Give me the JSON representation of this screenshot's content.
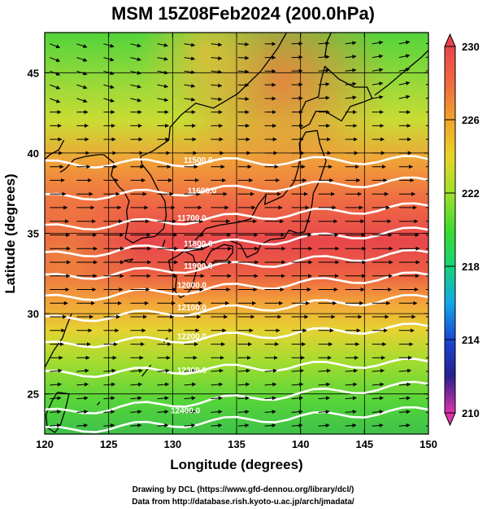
{
  "title": "MSM 15Z08Feb2024 (200.0hPa)",
  "map": {
    "xlabel": "Longitude (degrees)",
    "ylabel": "Latitude  (degrees)",
    "lon_range": [
      120,
      150
    ],
    "lat_range": [
      22.5,
      47.5
    ],
    "lon_ticks": [
      "120",
      "125",
      "130",
      "135",
      "140",
      "145",
      "150"
    ],
    "lat_ticks": [
      "25",
      "30",
      "35",
      "40",
      "45"
    ],
    "grid_lon": [
      125,
      130,
      135,
      140,
      145
    ],
    "grid_lat": [
      25,
      30,
      35,
      40,
      45
    ]
  },
  "colorbar": {
    "min": 210,
    "max": 230,
    "tick_labels": [
      "230",
      "226",
      "222",
      "218",
      "214",
      "210"
    ],
    "colors": [
      "#dd33aa",
      "#2a1f8f",
      "#1947d4",
      "#14a8e6",
      "#18d27a",
      "#3ddc2e",
      "#9fe02c",
      "#e8d428",
      "#f2a22d",
      "#ef6a3e",
      "#e8464b"
    ]
  },
  "contours": {
    "labels": [
      {
        "text": "11500.0",
        "lon": 132.0,
        "lat": 39.6
      },
      {
        "text": "11600.0",
        "lon": 132.3,
        "lat": 37.7
      },
      {
        "text": "11700.0",
        "lon": 131.5,
        "lat": 36.0
      },
      {
        "text": "11800.0",
        "lon": 132.0,
        "lat": 34.4
      },
      {
        "text": "11900.0",
        "lon": 132.0,
        "lat": 33.0
      },
      {
        "text": "12000.0",
        "lon": 131.5,
        "lat": 31.8
      },
      {
        "text": "12100.0",
        "lon": 131.5,
        "lat": 30.4
      },
      {
        "text": "12200.0",
        "lon": 131.5,
        "lat": 28.6
      },
      {
        "text": "12300.0",
        "lon": 131.5,
        "lat": 26.5
      },
      {
        "text": "12400.0",
        "lon": 131.0,
        "lat": 24.0
      }
    ],
    "lines": [
      {
        "lat_w": 39.3,
        "lat_e": 39.6
      },
      {
        "lat_w": 37.2,
        "lat_e": 38.3
      },
      {
        "lat_w": 35.3,
        "lat_e": 36.7
      },
      {
        "lat_w": 33.6,
        "lat_e": 35.2
      },
      {
        "lat_w": 32.2,
        "lat_e": 33.8
      },
      {
        "lat_w": 30.9,
        "lat_e": 32.4
      },
      {
        "lat_w": 29.6,
        "lat_e": 31.0
      },
      {
        "lat_w": 28.0,
        "lat_e": 29.2
      },
      {
        "lat_w": 26.2,
        "lat_e": 27.0
      },
      {
        "lat_w": 23.8,
        "lat_e": 25.6
      },
      {
        "lat_w": 22.7,
        "lat_e": 24.0
      }
    ]
  },
  "wind": {
    "direction": "westerly",
    "arrow_color": "#000000"
  },
  "credits": [
    "Drawing by DCL (https://www.gfd-dennou.org/library/dcl/)",
    "Data from http://database.rish.kyoto-u.ac.jp/arch/jmadata/"
  ]
}
